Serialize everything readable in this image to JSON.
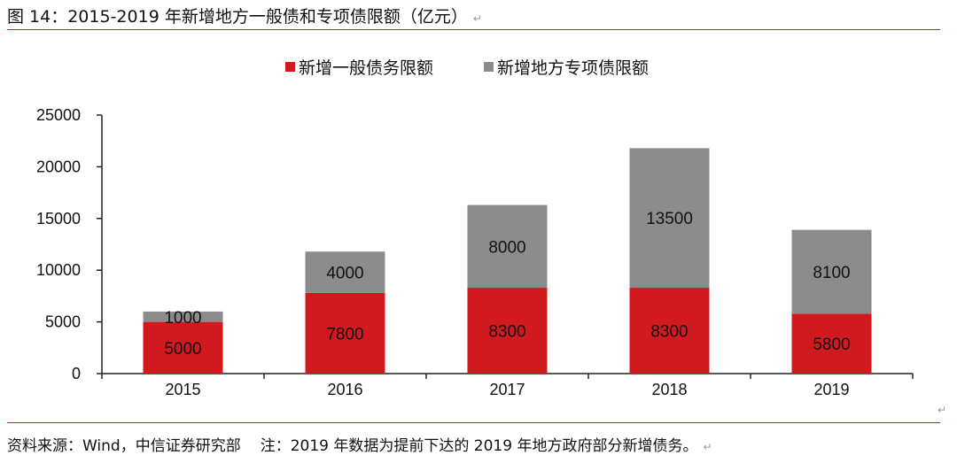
{
  "header": {
    "title": "图 14：2015-2019 年新增地方一般债和专项债限额（亿元）"
  },
  "footer": {
    "source": "资料来源：Wind，中信证券研究部",
    "note": "注：2019 年数据为提前下达的 2019 年地方政府部分新增债务。"
  },
  "colors": {
    "general_bond": "#d11a1f",
    "special_bond": "#8c8c8c",
    "rule": "#c0262d"
  },
  "chart_data": {
    "type": "bar",
    "stacked": true,
    "categories": [
      "2015",
      "2016",
      "2017",
      "2018",
      "2019"
    ],
    "series": [
      {
        "name": "新增一般债务限额",
        "values": [
          5000,
          7800,
          8300,
          8300,
          5800
        ]
      },
      {
        "name": "新增地方专项债限额",
        "values": [
          1000,
          4000,
          8000,
          13500,
          8100
        ]
      }
    ],
    "ylim": [
      0,
      25000
    ],
    "yticks": [
      "0",
      "5000",
      "10000",
      "15000",
      "20000",
      "25000"
    ],
    "grid": false,
    "legend": "top-center"
  }
}
